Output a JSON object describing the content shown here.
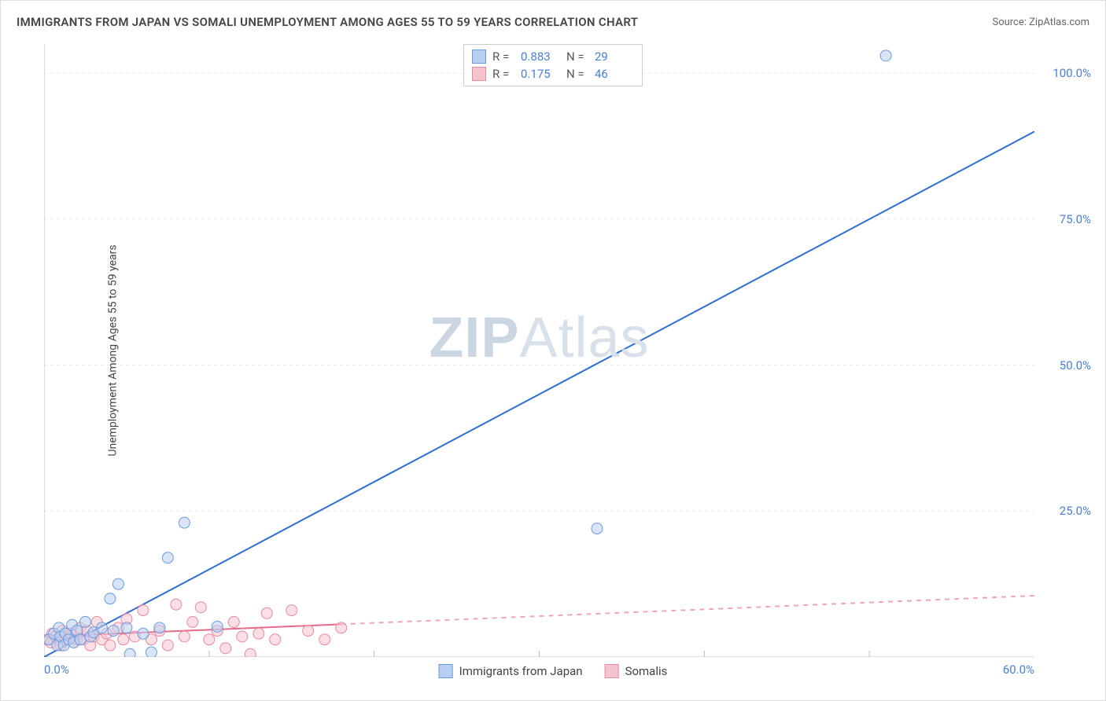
{
  "title": "IMMIGRANTS FROM JAPAN VS SOMALI UNEMPLOYMENT AMONG AGES 55 TO 59 YEARS CORRELATION CHART",
  "source_prefix": "Source: ",
  "source_name": "ZipAtlas.com",
  "ylabel": "Unemployment Among Ages 55 to 59 years",
  "watermark_a": "ZIP",
  "watermark_b": "Atlas",
  "chart": {
    "type": "scatter-with-regression",
    "background_color": "#ffffff",
    "grid_color": "#e8e8e8",
    "axis_color": "#bbbbbb",
    "tick_font_color": "#4a7fd6",
    "tick_fontsize": 15,
    "title_fontsize": 15,
    "label_fontsize": 14,
    "xlim": [
      0,
      60
    ],
    "ylim": [
      0,
      105
    ],
    "xticks": [
      0,
      60
    ],
    "xtick_labels": [
      "0.0%",
      "60.0%"
    ],
    "vgrid": [
      10,
      20,
      30,
      40,
      50
    ],
    "yticks": [
      25,
      50,
      75,
      100
    ],
    "ytick_labels": [
      "25.0%",
      "50.0%",
      "75.0%",
      "100.0%"
    ],
    "marker_radius": 7,
    "marker_opacity": 0.55,
    "line_width": 2,
    "series": [
      {
        "key": "japan",
        "label": "Immigrants from Japan",
        "color_fill": "#b9cff1",
        "color_stroke": "#6a9be0",
        "line_color": "#2f6ed0",
        "R": "0.883",
        "N": "29",
        "regression": {
          "x1": 0,
          "y1": 0,
          "x2": 60,
          "y2": 90,
          "dashed": false
        },
        "points": [
          [
            0.3,
            3.0
          ],
          [
            0.6,
            4.0
          ],
          [
            0.8,
            2.0
          ],
          [
            0.9,
            5.0
          ],
          [
            1.0,
            3.5
          ],
          [
            1.2,
            2.0
          ],
          [
            1.3,
            4.0
          ],
          [
            1.5,
            3.0
          ],
          [
            1.7,
            5.5
          ],
          [
            1.8,
            2.5
          ],
          [
            2.0,
            4.5
          ],
          [
            2.2,
            3.0
          ],
          [
            2.5,
            6.0
          ],
          [
            2.8,
            3.5
          ],
          [
            3.0,
            4.2
          ],
          [
            3.5,
            5.0
          ],
          [
            4.0,
            10.0
          ],
          [
            4.2,
            4.5
          ],
          [
            4.5,
            12.5
          ],
          [
            5.0,
            5.0
          ],
          [
            5.2,
            0.5
          ],
          [
            6.0,
            4.0
          ],
          [
            6.5,
            0.8
          ],
          [
            7.0,
            5.0
          ],
          [
            7.5,
            17.0
          ],
          [
            8.5,
            23.0
          ],
          [
            10.5,
            5.2
          ],
          [
            33.5,
            22.0
          ],
          [
            51.0,
            103.0
          ]
        ]
      },
      {
        "key": "somali",
        "label": "Somalis",
        "color_fill": "#f6c4cf",
        "color_stroke": "#e88aa0",
        "line_color": "#e36b87",
        "R": "0.175",
        "N": "46",
        "regression": {
          "x1": 0,
          "y1": 3.5,
          "x2": 60,
          "y2": 10.5,
          "dashed_from": 18
        },
        "points": [
          [
            0.2,
            3.0
          ],
          [
            0.4,
            2.5
          ],
          [
            0.5,
            4.0
          ],
          [
            0.7,
            3.5
          ],
          [
            0.8,
            3.0
          ],
          [
            1.0,
            2.0
          ],
          [
            1.1,
            4.5
          ],
          [
            1.3,
            3.0
          ],
          [
            1.5,
            3.5
          ],
          [
            1.6,
            4.0
          ],
          [
            1.8,
            2.5
          ],
          [
            2.0,
            3.0
          ],
          [
            2.2,
            5.0
          ],
          [
            2.4,
            3.0
          ],
          [
            2.6,
            4.5
          ],
          [
            2.8,
            2.0
          ],
          [
            3.0,
            3.5
          ],
          [
            3.2,
            6.0
          ],
          [
            3.5,
            3.0
          ],
          [
            3.8,
            4.0
          ],
          [
            4.0,
            2.0
          ],
          [
            4.5,
            5.0
          ],
          [
            4.8,
            3.0
          ],
          [
            5.0,
            6.5
          ],
          [
            5.5,
            3.5
          ],
          [
            6.0,
            8.0
          ],
          [
            6.5,
            3.0
          ],
          [
            7.0,
            4.5
          ],
          [
            7.5,
            2.0
          ],
          [
            8.0,
            9.0
          ],
          [
            8.5,
            3.5
          ],
          [
            9.0,
            6.0
          ],
          [
            9.5,
            8.5
          ],
          [
            10.0,
            3.0
          ],
          [
            10.5,
            4.5
          ],
          [
            11.0,
            1.5
          ],
          [
            11.5,
            6.0
          ],
          [
            12.0,
            3.5
          ],
          [
            12.5,
            0.5
          ],
          [
            13.0,
            4.0
          ],
          [
            13.5,
            7.5
          ],
          [
            14.0,
            3.0
          ],
          [
            15.0,
            8.0
          ],
          [
            16.0,
            4.5
          ],
          [
            17.0,
            3.0
          ],
          [
            18.0,
            5.0
          ]
        ]
      }
    ]
  },
  "legend_top": {
    "R_label": "R =",
    "N_label": "N ="
  }
}
